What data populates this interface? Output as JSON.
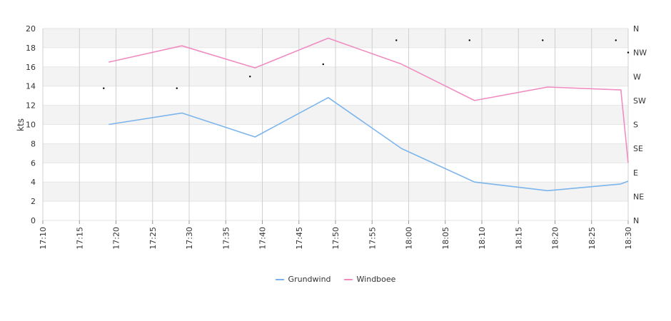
{
  "chart_data": {
    "type": "line",
    "ylabel": "kts",
    "ylim": [
      0,
      20
    ],
    "y_ticks": [
      "0",
      "2",
      "4",
      "6",
      "8",
      "10",
      "12",
      "14",
      "16",
      "18",
      "20"
    ],
    "x_range": [
      "17:10",
      "18:30"
    ],
    "x_ticks": [
      "17:10",
      "17:15",
      "17:20",
      "17:25",
      "17:30",
      "17:35",
      "17:40",
      "17:45",
      "17:50",
      "17:55",
      "18:00",
      "18:05",
      "18:10",
      "18:15",
      "18:20",
      "18:25",
      "18:30"
    ],
    "direction_ticks": [
      "N",
      "NE",
      "E",
      "SE",
      "S",
      "SW",
      "W",
      "NW",
      "N"
    ],
    "grid": true,
    "legend_position": "bottom",
    "series": [
      {
        "name": "Grundwind",
        "color": "#7cb5ec",
        "x": [
          "17:19",
          "17:29",
          "17:39",
          "17:49",
          "17:59",
          "18:09",
          "18:19",
          "18:29",
          "18:30"
        ],
        "values": [
          10.0,
          11.2,
          8.7,
          12.8,
          7.5,
          4.0,
          3.1,
          3.8,
          4.1
        ]
      },
      {
        "name": "Windboee",
        "color": "#f08cc2",
        "x": [
          "17:19",
          "17:29",
          "17:39",
          "17:49",
          "17:59",
          "18:09",
          "18:19",
          "18:29",
          "18:30"
        ],
        "values": [
          16.5,
          18.2,
          15.9,
          19.0,
          16.3,
          12.5,
          13.9,
          13.6,
          6.0
        ]
      }
    ],
    "direction_points": {
      "x": [
        "17:19",
        "17:29",
        "17:39",
        "17:49",
        "17:59",
        "18:09",
        "18:19",
        "18:29",
        "18:30"
      ],
      "degrees": [
        248,
        248,
        270,
        293,
        338,
        338,
        338,
        338,
        315
      ]
    }
  }
}
